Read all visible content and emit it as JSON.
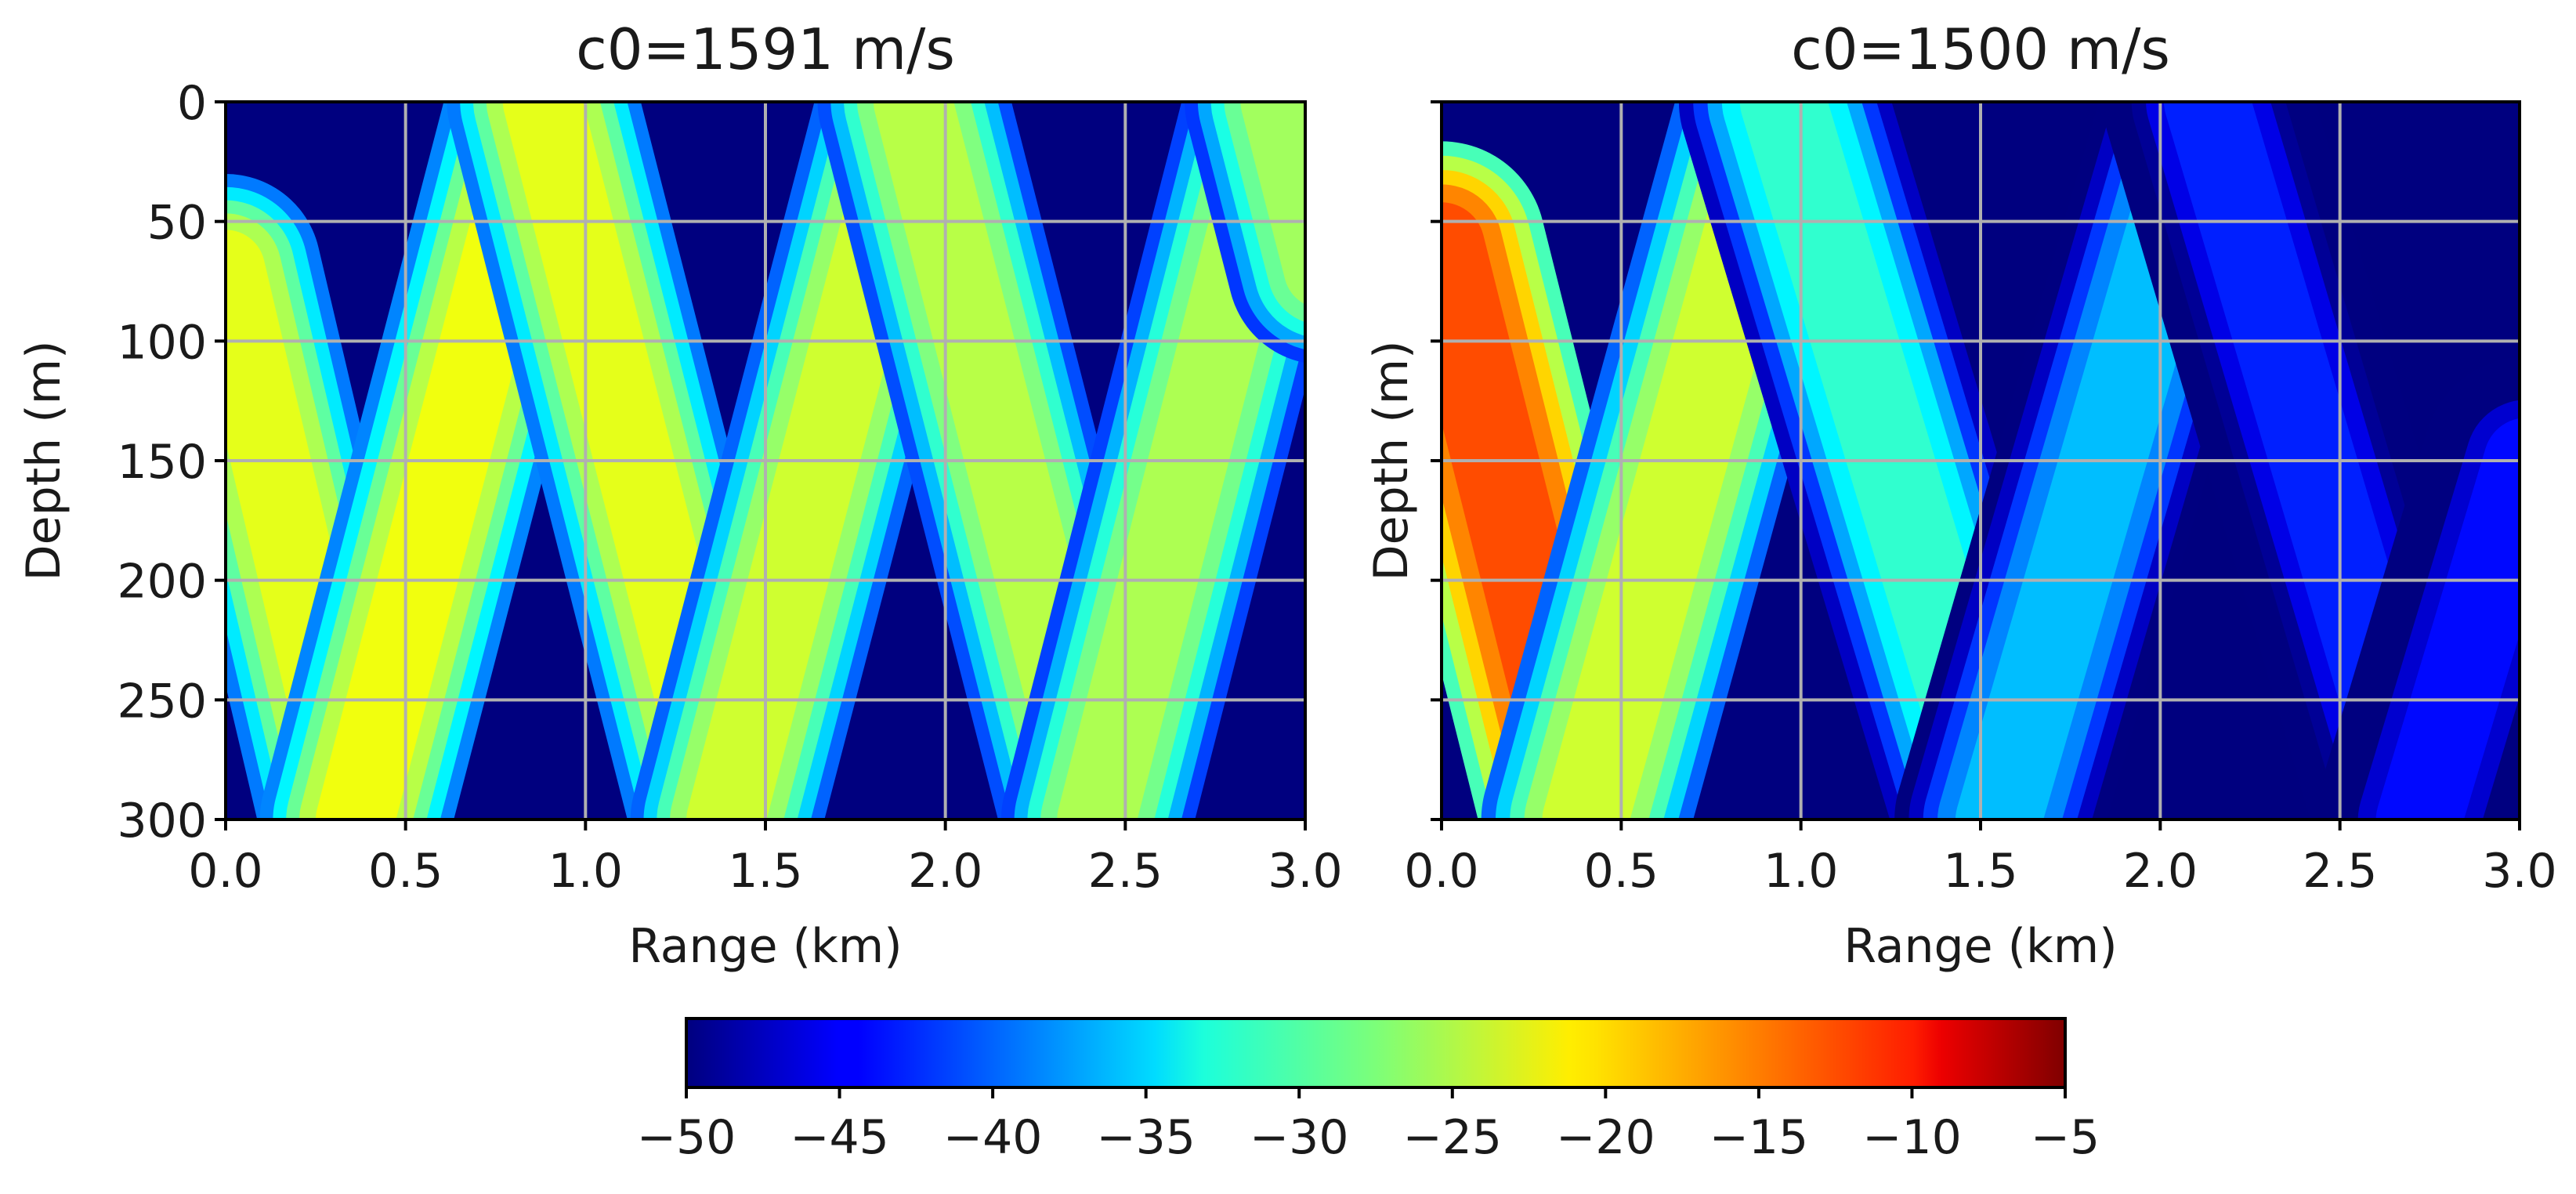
{
  "chart_data": [
    {
      "type": "heatmap",
      "title": "c0=1591 m/s",
      "xlabel": "Range (km)",
      "ylabel": "Depth (m)",
      "xlim": [
        0,
        3.0
      ],
      "ylim": [
        300,
        0
      ],
      "xticks": [
        "0.0",
        "0.5",
        "1.0",
        "1.5",
        "2.0",
        "2.5",
        "3.0"
      ],
      "yticks": [
        "0",
        "50",
        "100",
        "150",
        "200",
        "250",
        "300"
      ],
      "grid": true,
      "background_db": -50,
      "beam_width_m": 55,
      "ray_paths": [
        {
          "points": [
            [
              0.0,
              70
            ],
            [
              0.36,
              300
            ]
          ],
          "db": -23
        },
        {
          "points": [
            [
              0.36,
              300
            ],
            [
              0.88,
              0
            ]
          ],
          "db": -22.5
        },
        {
          "points": [
            [
              0.88,
              0
            ],
            [
              1.39,
              300
            ]
          ],
          "db": -23
        },
        {
          "points": [
            [
              1.39,
              300
            ],
            [
              1.91,
              0
            ]
          ],
          "db": -24
        },
        {
          "points": [
            [
              1.91,
              0
            ],
            [
              2.42,
              300
            ]
          ],
          "db": -25
        },
        {
          "points": [
            [
              2.42,
              300
            ],
            [
              2.93,
              0
            ]
          ],
          "db": -25.5
        },
        {
          "points": [
            [
              2.93,
              0
            ],
            [
              3.05,
              70
            ]
          ],
          "db": -26
        }
      ]
    },
    {
      "type": "heatmap",
      "title": "c0=1500 m/s",
      "xlabel": "Range (km)",
      "ylabel": "Depth (m)",
      "xlim": [
        0,
        3.0
      ],
      "ylim": [
        300,
        0
      ],
      "xticks": [
        "0.0",
        "0.5",
        "1.0",
        "1.5",
        "2.0",
        "2.5",
        "3.0"
      ],
      "yticks": [],
      "grid": true,
      "background_db": -50,
      "beam_width_m": 60,
      "ray_paths": [
        {
          "points": [
            [
              0.0,
              60
            ],
            [
              0.4,
              300
            ]
          ],
          "db": -14
        },
        {
          "points": [
            [
              0.4,
              300
            ],
            [
              0.95,
              0
            ]
          ],
          "db": -24
        },
        {
          "points": [
            [
              0.95,
              0
            ],
            [
              1.55,
              300
            ]
          ],
          "db": -31
        },
        {
          "points": [
            [
              1.55,
              300
            ],
            [
              2.13,
              0
            ]
          ],
          "db": -36
        },
        {
          "points": [
            [
              2.13,
              0
            ],
            [
              2.72,
              300
            ]
          ],
          "db": -43
        },
        {
          "points": [
            [
              2.72,
              300
            ],
            [
              3.02,
              150
            ]
          ],
          "db": -44
        }
      ]
    }
  ],
  "colorbar": {
    "colormap": "jet",
    "min": -50,
    "max": -5,
    "ticks": [
      "−50",
      "−45",
      "−40",
      "−35",
      "−30",
      "−25",
      "−20",
      "−15",
      "−10",
      "−5"
    ],
    "tick_values": [
      -50,
      -45,
      -40,
      -35,
      -30,
      -25,
      -20,
      -15,
      -10,
      -5
    ]
  }
}
